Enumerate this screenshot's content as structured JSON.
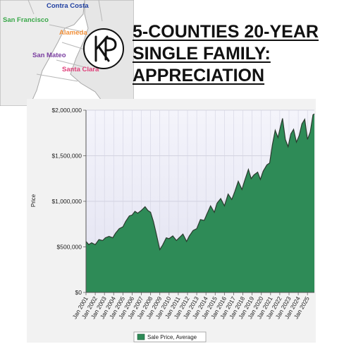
{
  "map": {
    "counties": [
      {
        "label": "Contra Costa",
        "color": "#1f3fa0"
      },
      {
        "label": "San Francisco",
        "color": "#3aa84a"
      },
      {
        "label": "Alameda",
        "color": "#f0903a"
      },
      {
        "label": "San Mateo",
        "color": "#7a3ea0"
      },
      {
        "label": "Santa Clara",
        "color": "#e0407a"
      }
    ]
  },
  "logo": {
    "icon": "kp-monogram-logo",
    "text": "KP"
  },
  "headline": {
    "line1": "5-COUNTIES 20-YEAR",
    "line2": "SINGLE FAMILY:",
    "line3": "APPRECIATION"
  },
  "chart_data": {
    "type": "area",
    "ylabel": "Price",
    "ylim": [
      0,
      2000000
    ],
    "y_ticks": [
      "$0",
      "$500,000",
      "$1,000,000",
      "$1,500,000",
      "$2,000,000"
    ],
    "x_ticks": [
      "Jan 2001",
      "Jan 2002",
      "Jan 2003",
      "Jan 2004",
      "Jan 2005",
      "Jan 2006",
      "Jan 2007",
      "Jan 2008",
      "Jan 2009",
      "Jan 2010",
      "Jan 2011",
      "Jan 2012",
      "Jan 2013",
      "Jan 2014",
      "Jan 2015",
      "Jan 2016",
      "Jan 2017",
      "Jan 2018",
      "Jan 2019",
      "Jan 2020",
      "Jan 2021",
      "Jan 2022",
      "Jan 2023",
      "Jan 2024",
      "Jan 2025"
    ],
    "x_range": [
      2001.0,
      2025.75
    ],
    "grid": true,
    "legend_position": "bottom",
    "colors": {
      "fill": "#2e8b57",
      "line": "#2a3a2e",
      "plot_bg_top": "#f4f4fb",
      "plot_bg_bottom": "#e4e4f2"
    },
    "series": [
      {
        "name": "Sale Price, Average",
        "points": [
          [
            2001.0,
            560000
          ],
          [
            2001.3,
            525000
          ],
          [
            2001.6,
            545000
          ],
          [
            2002.0,
            525000
          ],
          [
            2002.4,
            580000
          ],
          [
            2002.8,
            570000
          ],
          [
            2003.1,
            600000
          ],
          [
            2003.5,
            615000
          ],
          [
            2003.9,
            600000
          ],
          [
            2004.2,
            650000
          ],
          [
            2004.6,
            700000
          ],
          [
            2005.0,
            720000
          ],
          [
            2005.3,
            780000
          ],
          [
            2005.7,
            840000
          ],
          [
            2006.0,
            850000
          ],
          [
            2006.3,
            890000
          ],
          [
            2006.6,
            870000
          ],
          [
            2007.0,
            900000
          ],
          [
            2007.4,
            940000
          ],
          [
            2007.7,
            900000
          ],
          [
            2008.0,
            880000
          ],
          [
            2008.3,
            780000
          ],
          [
            2008.6,
            650000
          ],
          [
            2009.0,
            470000
          ],
          [
            2009.3,
            520000
          ],
          [
            2009.7,
            600000
          ],
          [
            2010.0,
            590000
          ],
          [
            2010.4,
            620000
          ],
          [
            2010.8,
            570000
          ],
          [
            2011.1,
            600000
          ],
          [
            2011.5,
            640000
          ],
          [
            2011.9,
            560000
          ],
          [
            2012.2,
            620000
          ],
          [
            2012.6,
            680000
          ],
          [
            2013.0,
            700000
          ],
          [
            2013.4,
            800000
          ],
          [
            2013.8,
            790000
          ],
          [
            2014.1,
            860000
          ],
          [
            2014.5,
            950000
          ],
          [
            2014.9,
            880000
          ],
          [
            2015.2,
            980000
          ],
          [
            2015.6,
            1030000
          ],
          [
            2016.0,
            950000
          ],
          [
            2016.4,
            1080000
          ],
          [
            2016.8,
            1020000
          ],
          [
            2017.1,
            1100000
          ],
          [
            2017.5,
            1220000
          ],
          [
            2017.9,
            1130000
          ],
          [
            2018.2,
            1230000
          ],
          [
            2018.6,
            1350000
          ],
          [
            2018.9,
            1250000
          ],
          [
            2019.2,
            1290000
          ],
          [
            2019.6,
            1320000
          ],
          [
            2019.9,
            1240000
          ],
          [
            2020.2,
            1330000
          ],
          [
            2020.6,
            1400000
          ],
          [
            2020.9,
            1420000
          ],
          [
            2021.2,
            1620000
          ],
          [
            2021.5,
            1780000
          ],
          [
            2021.8,
            1700000
          ],
          [
            2022.1,
            1830000
          ],
          [
            2022.3,
            1910000
          ],
          [
            2022.6,
            1680000
          ],
          [
            2022.9,
            1600000
          ],
          [
            2023.2,
            1740000
          ],
          [
            2023.5,
            1790000
          ],
          [
            2023.8,
            1650000
          ],
          [
            2024.1,
            1720000
          ],
          [
            2024.4,
            1850000
          ],
          [
            2024.7,
            1900000
          ],
          [
            2025.0,
            1680000
          ],
          [
            2025.3,
            1760000
          ],
          [
            2025.6,
            1950000
          ],
          [
            2025.75,
            1960000
          ]
        ]
      }
    ]
  }
}
